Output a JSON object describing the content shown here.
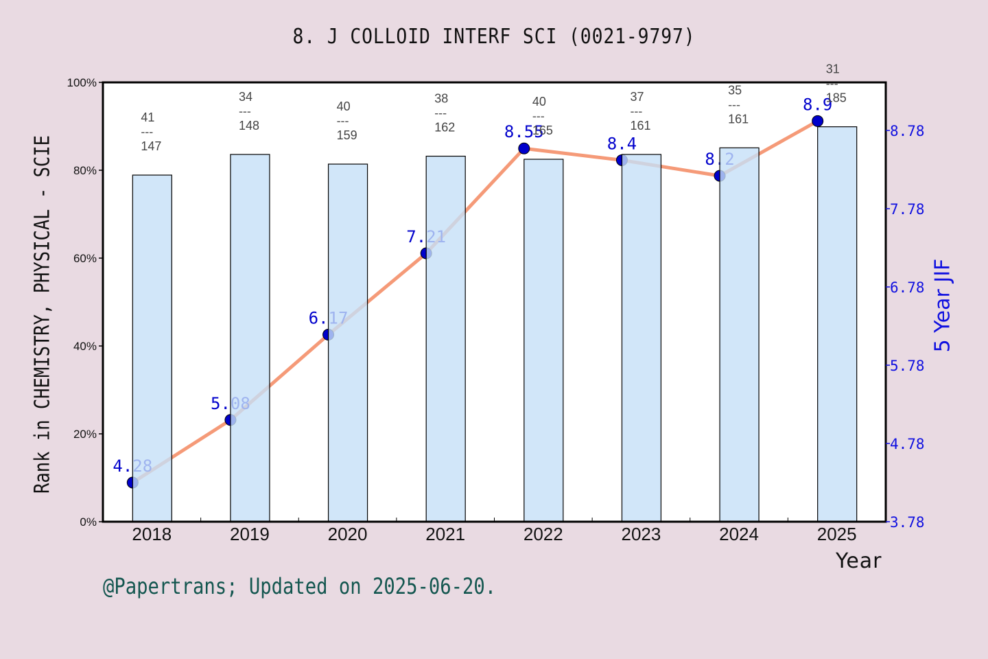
{
  "title": "8. J COLLOID INTERF SCI (0021-9797)",
  "footer": "@Papertrans; Updated on 2025-06-20.",
  "axes": {
    "left_label": "Rank in CHEMISTRY, PHYSICAL - SCIE",
    "right_label": "5 Year JIF",
    "x_label": "Year",
    "left_ticks": [
      "0%",
      "20%",
      "40%",
      "60%",
      "80%",
      "100%"
    ],
    "right_ticks": [
      "3.78",
      "4.78",
      "5.78",
      "6.78",
      "7.78",
      "8.78"
    ]
  },
  "colors": {
    "background": "#e9dae2",
    "bar_fill": "#c5e0f7",
    "line": "#f59a78",
    "marker": "#0000cc",
    "jif_label": "#0000cc",
    "right_axis": "#1010e0",
    "footer": "#13564f"
  },
  "chart_data": {
    "type": "bar+line",
    "title": "8. J COLLOID INTERF SCI (0021-9797)",
    "xlabel": "Year",
    "ylabel": "Rank in CHEMISTRY, PHYSICAL - SCIE",
    "y2label": "5 Year JIF",
    "categories": [
      "2018",
      "2019",
      "2020",
      "2021",
      "2022",
      "2023",
      "2024",
      "2025"
    ],
    "ylim": [
      0,
      100
    ],
    "y2lim": [
      3.78,
      9.4
    ],
    "series": [
      {
        "name": "Rank percentile",
        "type": "bar",
        "axis": "left",
        "values": [
          78.9,
          83.6,
          81.4,
          83.2,
          82.5,
          83.6,
          85.1,
          89.9
        ],
        "rank_labels": [
          {
            "rank": "41",
            "total": "147"
          },
          {
            "rank": "34",
            "total": "148"
          },
          {
            "rank": "40",
            "total": "159"
          },
          {
            "rank": "38",
            "total": "162"
          },
          {
            "rank": "40",
            "total": "165"
          },
          {
            "rank": "37",
            "total": "161"
          },
          {
            "rank": "35",
            "total": "161"
          },
          {
            "rank": "31",
            "total": "185"
          }
        ]
      },
      {
        "name": "5 Year JIF",
        "type": "line",
        "axis": "right",
        "values": [
          4.28,
          5.08,
          6.17,
          7.21,
          8.55,
          8.4,
          8.2,
          8.9
        ],
        "labels": [
          "4.28",
          "5.08",
          "6.17",
          "7.21",
          "8.55",
          "8.4",
          "8.2",
          "8.9"
        ]
      }
    ],
    "grid": false,
    "legend": "none"
  }
}
